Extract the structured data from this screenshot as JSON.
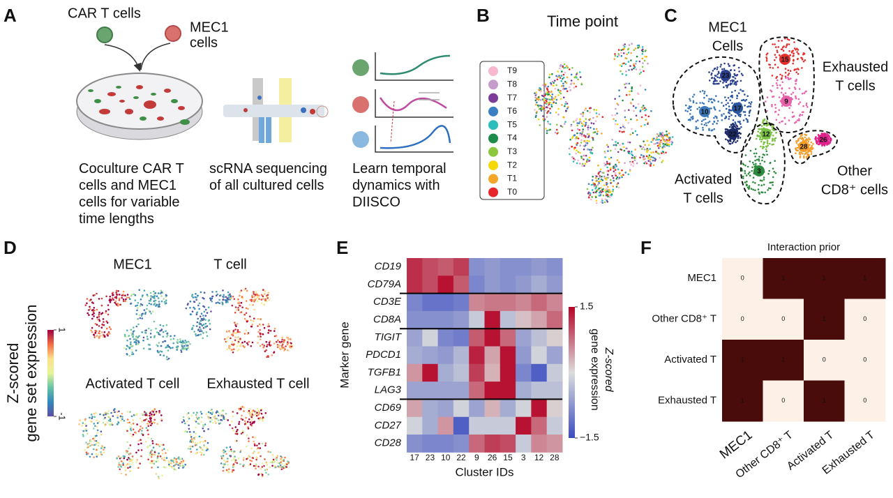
{
  "panel_a": {
    "label": "A",
    "car_t_cells": "CAR T cells",
    "mec1_cells": [
      "MEC1",
      "cells"
    ],
    "steps": [
      "Coculture CAR T cells and MEC1 cells for variable time lengths",
      "scRNA sequencing of all cultured cells",
      "Learn temporal dynamics with DIISCO"
    ]
  },
  "panel_b": {
    "label": "B",
    "title": "Time point",
    "legend": [
      {
        "name": "T9",
        "color": "#f7b7cf"
      },
      {
        "name": "T8",
        "color": "#c79bcb"
      },
      {
        "name": "T7",
        "color": "#7d3c98"
      },
      {
        "name": "T6",
        "color": "#3a7fc1"
      },
      {
        "name": "T5",
        "color": "#2cbdbd"
      },
      {
        "name": "T4",
        "color": "#1e8a4a"
      },
      {
        "name": "T3",
        "color": "#8dc63f"
      },
      {
        "name": "T2",
        "color": "#f4d80c"
      },
      {
        "name": "T1",
        "color": "#f4a62a"
      },
      {
        "name": "T0",
        "color": "#e8262a"
      }
    ]
  },
  "panel_c": {
    "label": "C",
    "groups": [
      [
        "MEC1",
        "Cells"
      ],
      [
        "Exhausted",
        "T cells"
      ],
      [
        "Activated",
        "T cells"
      ],
      [
        "Other",
        "CD8⁺  cells"
      ]
    ],
    "clusters": [
      {
        "id": "23",
        "color": "#2b3f8f"
      },
      {
        "id": "10",
        "color": "#3b78b8"
      },
      {
        "id": "17",
        "color": "#2a56a0"
      },
      {
        "id": "22",
        "color": "#1c2a6a"
      },
      {
        "id": "15",
        "color": "#e52f2f"
      },
      {
        "id": "9",
        "color": "#e862ab"
      },
      {
        "id": "12",
        "color": "#7ac143"
      },
      {
        "id": "3",
        "color": "#2e8b3e"
      },
      {
        "id": "28",
        "color": "#f39c2a"
      },
      {
        "id": "26",
        "color": "#e0208a"
      }
    ]
  },
  "panel_d": {
    "label": "D",
    "titles": [
      "MEC1",
      "T cell",
      "Activated T cell",
      "Exhausted T cell"
    ],
    "colorbar_label": [
      "Z-scored",
      "gene set expression"
    ],
    "colorbar_ticks": [
      1,
      -1
    ],
    "zlim": [
      -1,
      1
    ],
    "colormap": [
      "#5e4fa2",
      "#3288bd",
      "#66c2a5",
      "#e6f598",
      "#fee08b",
      "#f46d43",
      "#9e0142"
    ]
  },
  "chart_data": [
    {
      "type": "heatmap",
      "label": "E",
      "x_label": "Cluster IDs",
      "y_label": "Marker gene",
      "categories": [
        "17",
        "23",
        "10",
        "22",
        "9",
        "26",
        "15",
        "3",
        "12",
        "28"
      ],
      "rows": [
        "CD19",
        "CD79A",
        "CD3E",
        "CD8A",
        "TIGIT",
        "PDCD1",
        "TGFB1",
        "LAG3",
        "CD69",
        "CD27",
        "CD28"
      ],
      "values": [
        [
          1.2,
          1.0,
          0.9,
          1.1,
          -0.8,
          -0.7,
          -0.8,
          -0.8,
          -0.7,
          -0.8
        ],
        [
          1.2,
          1.0,
          1.4,
          0.9,
          -0.9,
          -0.7,
          -0.8,
          -0.7,
          -0.5,
          -0.7
        ],
        [
          -0.9,
          -1.1,
          -1.1,
          -1.0,
          0.6,
          0.7,
          0.7,
          0.6,
          0.8,
          0.6
        ],
        [
          -0.8,
          -0.8,
          -0.8,
          -0.7,
          -0.2,
          1.4,
          -0.3,
          0.2,
          0.4,
          0.8
        ],
        [
          -0.6,
          -0.1,
          -0.9,
          -1.0,
          0.9,
          1.4,
          0.8,
          -0.6,
          -0.3,
          0.1
        ],
        [
          -0.5,
          -0.6,
          -0.7,
          -0.4,
          1.3,
          0.4,
          1.4,
          -0.7,
          -0.1,
          -0.6
        ],
        [
          0.5,
          1.4,
          -0.5,
          -0.3,
          1.1,
          0.3,
          1.4,
          -0.9,
          -1.3,
          -0.2
        ],
        [
          -0.6,
          -0.6,
          -0.6,
          -0.6,
          0.8,
          1.4,
          1.4,
          -0.5,
          -0.3,
          -0.3
        ],
        [
          0.4,
          -0.5,
          -0.6,
          -0.1,
          -0.6,
          0.3,
          -0.5,
          -0.1,
          1.4,
          0.1
        ],
        [
          -0.1,
          -0.5,
          0.5,
          -1.3,
          -0.2,
          -0.2,
          -0.2,
          1.4,
          0.8,
          -0.2
        ],
        [
          -0.8,
          -0.9,
          -0.9,
          -0.8,
          0.8,
          1.1,
          1.0,
          -0.2,
          0.6,
          0.5
        ]
      ],
      "colorbar_label": [
        "Z-scored",
        "gene expression"
      ],
      "zlim": [
        -1.5,
        1.5
      ],
      "zticks": [
        1.5,
        {
          "value": -1.5,
          "label": "−1.5"
        }
      ],
      "colormap": [
        "#3b4cc0",
        "#dcdddd",
        "#b40426"
      ]
    },
    {
      "type": "heatmap",
      "label": "F",
      "title": "Interaction prior",
      "categories": [
        "MEC1",
        "Other CD8⁺ T",
        "Activated T",
        "Exhausted T"
      ],
      "rows": [
        "MEC1",
        "Other CD8⁺ T",
        "Activated T",
        "Exhausted T"
      ],
      "values": [
        [
          0,
          1,
          1,
          1
        ],
        [
          0,
          0,
          1,
          0
        ],
        [
          1,
          1,
          0,
          0
        ],
        [
          1,
          0,
          1,
          0
        ]
      ],
      "zlim": [
        0,
        1
      ],
      "colormap": [
        "#fdf0e6",
        "#4a0b0b"
      ]
    }
  ]
}
